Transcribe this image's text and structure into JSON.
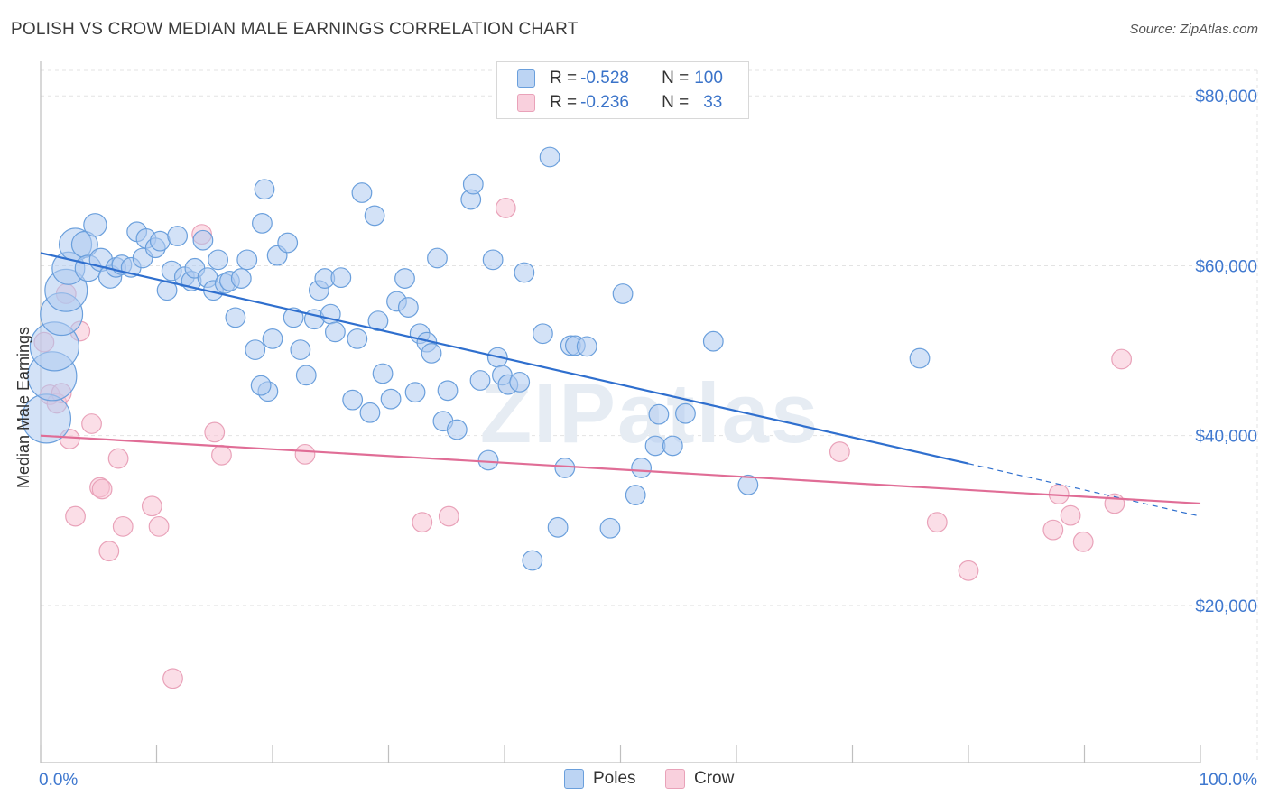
{
  "title": "POLISH VS CROW MEDIAN MALE EARNINGS CORRELATION CHART",
  "source": "Source: ZipAtlas.com",
  "watermark": "ZIPatlas",
  "legend_top": {
    "rows": [
      {
        "r_label": "R = ",
        "r_value": "-0.528",
        "n_label": "N = ",
        "n_value": "100"
      },
      {
        "r_label": "R = ",
        "r_value": "-0.236",
        "n_label": "N = ",
        "n_value": "33"
      }
    ]
  },
  "colors": {
    "poles_fill": "#aecbf0",
    "poles_stroke": "#6a9fdc",
    "poles_line": "#2f6fce",
    "crow_fill": "#f7c3d3",
    "crow_stroke": "#e9a2b9",
    "crow_line": "#e06d96",
    "axis_text": "#3f78cf",
    "grid": "#e3e3e3"
  },
  "chart_data": {
    "type": "scatter",
    "title": "POLISH VS CROW MEDIAN MALE EARNINGS CORRELATION CHART",
    "xlabel": "",
    "ylabel": "Median Male Earnings",
    "x_tick_labels": [
      "0.0%",
      "100.0%"
    ],
    "y_tick_labels": [
      "$20,000",
      "$40,000",
      "$60,000",
      "$80,000"
    ],
    "y_ticks": [
      20000,
      40000,
      60000,
      80000
    ],
    "xlim": [
      0,
      100
    ],
    "ylim": [
      1500,
      83000
    ],
    "grid": true,
    "legend_position": "bottom",
    "series": [
      {
        "name": "Poles",
        "r": -0.528,
        "n": 100,
        "trend": {
          "x0": 0,
          "y0": 61500,
          "x1": 80,
          "y1": 36700,
          "dashed_to_x": 100,
          "dashed_to_y": 30500
        },
        "points": [
          [
            0.5,
            42000,
            3
          ],
          [
            1.0,
            47000,
            3
          ],
          [
            1.2,
            50500,
            3
          ],
          [
            1.8,
            54300,
            2.6
          ],
          [
            2.2,
            57100,
            2.6
          ],
          [
            2.4,
            59700,
            2
          ],
          [
            3.0,
            62500,
            2
          ],
          [
            3.8,
            62500,
            1.6
          ],
          [
            4.1,
            59700,
            1.6
          ],
          [
            4.7,
            64800,
            1.4
          ],
          [
            5.2,
            60700,
            1.4
          ],
          [
            6.0,
            58700,
            1.4
          ],
          [
            6.5,
            59800,
            1.2
          ],
          [
            7.0,
            60100,
            1.2
          ],
          [
            7.8,
            59800,
            1.2
          ],
          [
            8.3,
            64000,
            1.2
          ],
          [
            8.8,
            60900,
            1.2
          ],
          [
            9.1,
            63200,
            1.2
          ],
          [
            9.9,
            62100,
            1.2
          ],
          [
            10.3,
            62900,
            1.2
          ],
          [
            10.9,
            57100,
            1.2
          ],
          [
            11.8,
            63500,
            1.2
          ],
          [
            11.3,
            59400,
            1.2
          ],
          [
            12.4,
            58700,
            1.2
          ],
          [
            13.0,
            58200,
            1.2
          ],
          [
            13.3,
            59700,
            1.2
          ],
          [
            14.0,
            63000,
            1.2
          ],
          [
            14.4,
            58600,
            1.2
          ],
          [
            14.9,
            57100,
            1.2
          ],
          [
            15.3,
            60700,
            1.2
          ],
          [
            15.9,
            57900,
            1.2
          ],
          [
            16.3,
            58200,
            1.2
          ],
          [
            16.8,
            53900,
            1.2
          ],
          [
            17.3,
            58500,
            1.2
          ],
          [
            17.8,
            60700,
            1.2
          ],
          [
            18.5,
            50100,
            1.2
          ],
          [
            19.1,
            65000,
            1.2
          ],
          [
            19.3,
            69000,
            1.2
          ],
          [
            19.6,
            45200,
            1.2
          ],
          [
            19.0,
            45900,
            1.2
          ],
          [
            20.0,
            51400,
            1.2
          ],
          [
            20.4,
            61200,
            1.2
          ],
          [
            21.3,
            62700,
            1.2
          ],
          [
            21.8,
            53900,
            1.2
          ],
          [
            22.4,
            50100,
            1.2
          ],
          [
            22.9,
            47100,
            1.2
          ],
          [
            23.6,
            53700,
            1.2
          ],
          [
            24.0,
            57100,
            1.2
          ],
          [
            24.5,
            58500,
            1.2
          ],
          [
            25.0,
            54300,
            1.2
          ],
          [
            25.4,
            52200,
            1.2
          ],
          [
            25.9,
            58600,
            1.2
          ],
          [
            26.9,
            44200,
            1.2
          ],
          [
            27.3,
            51400,
            1.2
          ],
          [
            27.7,
            68600,
            1.2
          ],
          [
            28.4,
            42700,
            1.2
          ],
          [
            28.8,
            65900,
            1.2
          ],
          [
            29.1,
            53500,
            1.2
          ],
          [
            29.5,
            47300,
            1.2
          ],
          [
            30.2,
            44300,
            1.2
          ],
          [
            30.7,
            55800,
            1.2
          ],
          [
            31.4,
            58500,
            1.2
          ],
          [
            31.7,
            55100,
            1.2
          ],
          [
            32.3,
            45100,
            1.2
          ],
          [
            32.7,
            52000,
            1.2
          ],
          [
            33.3,
            51000,
            1.2
          ],
          [
            33.7,
            49700,
            1.2
          ],
          [
            34.2,
            60900,
            1.2
          ],
          [
            34.7,
            41700,
            1.2
          ],
          [
            35.1,
            45300,
            1.2
          ],
          [
            35.9,
            40700,
            1.2
          ],
          [
            37.1,
            67800,
            1.2
          ],
          [
            37.3,
            69600,
            1.2
          ],
          [
            37.9,
            46500,
            1.2
          ],
          [
            38.6,
            37100,
            1.2
          ],
          [
            39.0,
            60700,
            1.2
          ],
          [
            39.4,
            49200,
            1.2
          ],
          [
            39.8,
            47100,
            1.2
          ],
          [
            40.3,
            46000,
            1.2
          ],
          [
            41.7,
            59200,
            1.2
          ],
          [
            41.3,
            46300,
            1.2
          ],
          [
            42.4,
            25300,
            1.2
          ],
          [
            43.3,
            52000,
            1.2
          ],
          [
            43.9,
            72800,
            1.2
          ],
          [
            44.6,
            29200,
            1.2
          ],
          [
            45.2,
            36200,
            1.2
          ],
          [
            45.7,
            50600,
            1.2
          ],
          [
            46.1,
            50600,
            1.2
          ],
          [
            47.1,
            50500,
            1.2
          ],
          [
            49.1,
            29100,
            1.2
          ],
          [
            50.2,
            56700,
            1.2
          ],
          [
            51.3,
            33000,
            1.2
          ],
          [
            51.8,
            36200,
            1.2
          ],
          [
            53.0,
            38800,
            1.2
          ],
          [
            53.3,
            42500,
            1.2
          ],
          [
            54.5,
            38800,
            1.2
          ],
          [
            55.6,
            42600,
            1.2
          ],
          [
            58.0,
            51100,
            1.2
          ],
          [
            61.0,
            34200,
            1.2
          ],
          [
            75.8,
            49100,
            1.2
          ]
        ]
      },
      {
        "name": "Crow",
        "r": -0.236,
        "n": 33,
        "trend": {
          "x0": 0,
          "y0": 40000,
          "x1": 100,
          "y1": 32000
        },
        "points": [
          [
            0.3,
            51000,
            1.2
          ],
          [
            0.8,
            44800,
            1.2
          ],
          [
            1.4,
            43800,
            1.2
          ],
          [
            1.8,
            45000,
            1.2
          ],
          [
            2.2,
            56700,
            1.2
          ],
          [
            2.5,
            39600,
            1.2
          ],
          [
            3.0,
            30500,
            1.2
          ],
          [
            3.4,
            52300,
            1.2
          ],
          [
            4.4,
            41400,
            1.2
          ],
          [
            5.1,
            33900,
            1.2
          ],
          [
            5.3,
            33700,
            1.2
          ],
          [
            5.9,
            26400,
            1.2
          ],
          [
            6.7,
            37300,
            1.2
          ],
          [
            7.1,
            29300,
            1.2
          ],
          [
            9.6,
            31700,
            1.2
          ],
          [
            10.2,
            29300,
            1.2
          ],
          [
            11.4,
            11400,
            1.2
          ],
          [
            13.9,
            63700,
            1.2
          ],
          [
            15.0,
            40400,
            1.2
          ],
          [
            15.6,
            37700,
            1.2
          ],
          [
            22.8,
            37800,
            1.2
          ],
          [
            32.9,
            29800,
            1.2
          ],
          [
            35.2,
            30500,
            1.2
          ],
          [
            40.1,
            66800,
            1.2
          ],
          [
            68.9,
            38100,
            1.2
          ],
          [
            77.3,
            29800,
            1.2
          ],
          [
            80.0,
            24100,
            1.2
          ],
          [
            87.3,
            28900,
            1.2
          ],
          [
            87.8,
            33100,
            1.2
          ],
          [
            88.8,
            30600,
            1.2
          ],
          [
            89.9,
            27500,
            1.2
          ],
          [
            93.2,
            49000,
            1.2
          ],
          [
            92.6,
            32000,
            1.2
          ]
        ]
      }
    ]
  },
  "bottom_legend": [
    {
      "label": "Poles"
    },
    {
      "label": "Crow"
    }
  ]
}
